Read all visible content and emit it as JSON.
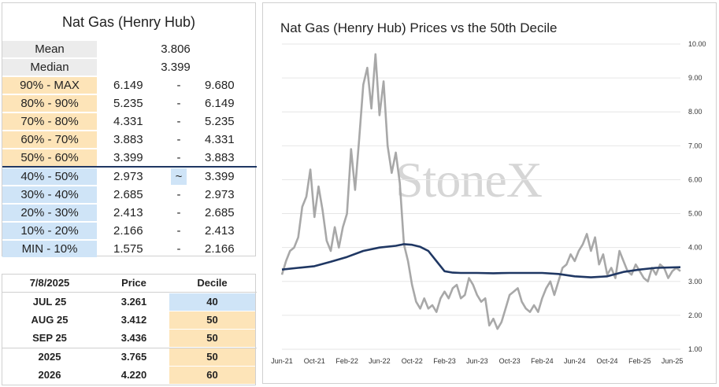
{
  "stats_table": {
    "title": "Nat Gas (Henry Hub)",
    "mean_label": "Mean",
    "mean_value": "3.806",
    "median_label": "Median",
    "median_value": "3.399",
    "deciles": [
      {
        "label": "90% - MAX",
        "low": "6.149",
        "sep": "-",
        "high": "9.680",
        "color": "#fde4b8"
      },
      {
        "label": "80% - 90%",
        "low": "5.235",
        "sep": "-",
        "high": "6.149",
        "color": "#fde4b8"
      },
      {
        "label": "70% - 80%",
        "low": "4.331",
        "sep": "-",
        "high": "5.235",
        "color": "#fde4b8"
      },
      {
        "label": "60% - 70%",
        "low": "3.883",
        "sep": "-",
        "high": "4.331",
        "color": "#fde4b8"
      },
      {
        "label": "50% - 60%",
        "low": "3.399",
        "sep": "-",
        "high": "3.883",
        "color": "#fde4b8"
      },
      {
        "label": "40% - 50%",
        "low": "2.973",
        "sep": "~",
        "high": "3.399",
        "color": "#cfe4f7"
      },
      {
        "label": "30% - 40%",
        "low": "2.685",
        "sep": "-",
        "high": "2.973",
        "color": "#cfe4f7"
      },
      {
        "label": "20% - 30%",
        "low": "2.413",
        "sep": "-",
        "high": "2.685",
        "color": "#cfe4f7"
      },
      {
        "label": "10% - 20%",
        "low": "2.166",
        "sep": "-",
        "high": "2.413",
        "color": "#cfe4f7"
      },
      {
        "label": "MIN - 10%",
        "low": "1.575",
        "sep": "-",
        "high": "2.166",
        "color": "#cfe4f7"
      }
    ]
  },
  "contract_table": {
    "headers": {
      "date": "7/8/2025",
      "price": "Price",
      "decile": "Decile"
    },
    "rows": [
      {
        "label": "JUL 25",
        "price": "3.261",
        "decile": "40"
      },
      {
        "label": "AUG 25",
        "price": "3.412",
        "decile": "50"
      },
      {
        "label": "SEP 25",
        "price": "3.436",
        "decile": "50"
      },
      {
        "label": "2025",
        "price": "3.765",
        "decile": "50"
      },
      {
        "label": "2026",
        "price": "4.220",
        "decile": "60"
      }
    ]
  },
  "colors": {
    "orange": "#fde4b8",
    "blue": "#cfe4f7",
    "price_line": "#a8a8a8",
    "median_line": "#1f3763"
  },
  "watermark": "StoneX",
  "chart_data": {
    "type": "line",
    "title": "Nat Gas (Henry Hub) Prices vs the 50th Decile",
    "x_ticks": [
      "Jun-21",
      "Oct-21",
      "Feb-22",
      "Jun-22",
      "Oct-22",
      "Feb-23",
      "Jun-23",
      "Oct-23",
      "Feb-24",
      "Jun-24",
      "Oct-24",
      "Feb-25",
      "Jun-25"
    ],
    "y_ticks": [
      "1.00",
      "2.00",
      "3.00",
      "4.00",
      "5.00",
      "6.00",
      "7.00",
      "8.00",
      "9.00",
      "10.00"
    ],
    "ylim": [
      1,
      10
    ],
    "xlim": [
      0,
      49
    ],
    "x_unit": "months since Jun-21",
    "series": [
      {
        "name": "Price",
        "x": [
          0,
          0.5,
          1,
          1.5,
          2,
          2.5,
          3,
          3.5,
          4,
          4.5,
          5,
          5.5,
          6,
          6.5,
          7,
          7.5,
          8,
          8.5,
          9,
          9.5,
          10,
          10.5,
          11,
          11.5,
          12,
          12.5,
          13,
          13.5,
          14,
          14.5,
          15,
          15.5,
          16,
          16.5,
          17,
          17.5,
          18,
          18.5,
          19,
          19.5,
          20,
          20.5,
          21,
          21.5,
          22,
          22.5,
          23,
          23.5,
          24,
          24.5,
          25,
          25.5,
          26,
          26.5,
          27,
          27.5,
          28,
          28.5,
          29,
          29.5,
          30,
          30.5,
          31,
          31.5,
          32,
          32.5,
          33,
          33.5,
          34,
          34.5,
          35,
          35.5,
          36,
          36.5,
          37,
          37.5,
          38,
          38.5,
          39,
          39.5,
          40,
          40.5,
          41,
          41.5,
          42,
          42.5,
          43,
          43.5,
          44,
          44.5,
          45,
          45.5,
          46,
          46.5,
          47,
          47.5,
          48,
          48.5,
          49
        ],
        "y": [
          3.2,
          3.6,
          3.9,
          4.0,
          4.3,
          5.2,
          5.5,
          6.3,
          4.9,
          5.8,
          5.1,
          4.2,
          3.9,
          4.6,
          4.0,
          4.6,
          5.0,
          6.9,
          5.7,
          7.2,
          8.8,
          9.3,
          8.1,
          9.7,
          7.9,
          8.9,
          7.0,
          6.2,
          6.8,
          5.9,
          4.1,
          3.6,
          2.9,
          2.4,
          2.2,
          2.5,
          2.2,
          2.3,
          2.1,
          2.5,
          2.7,
          2.5,
          2.8,
          2.9,
          2.5,
          2.6,
          3.1,
          2.9,
          2.6,
          2.4,
          2.5,
          1.7,
          1.9,
          1.6,
          1.8,
          2.2,
          2.6,
          2.7,
          2.8,
          2.4,
          2.2,
          2.1,
          2.3,
          2.1,
          2.5,
          2.8,
          3.0,
          2.6,
          3.0,
          3.4,
          3.5,
          3.8,
          3.6,
          3.9,
          4.1,
          4.4,
          3.9,
          4.3,
          3.5,
          3.8,
          3.2,
          3.4,
          3.1,
          3.9,
          3.6,
          3.3,
          3.2,
          3.5,
          3.3,
          3.1,
          3.0,
          3.4,
          3.2,
          3.5,
          3.4,
          3.1,
          3.3,
          3.4,
          3.3
        ]
      },
      {
        "name": "50th Decile",
        "x": [
          0,
          2,
          4,
          6,
          8,
          10,
          12,
          14,
          15,
          16,
          17,
          18,
          19,
          20,
          21,
          22,
          24,
          26,
          28,
          30,
          32,
          34,
          36,
          38,
          40,
          42,
          44,
          46,
          49
        ],
        "y": [
          3.35,
          3.4,
          3.45,
          3.58,
          3.72,
          3.9,
          4.0,
          4.05,
          4.1,
          4.08,
          4.02,
          3.9,
          3.6,
          3.3,
          3.26,
          3.25,
          3.25,
          3.24,
          3.25,
          3.25,
          3.25,
          3.22,
          3.15,
          3.12,
          3.15,
          3.28,
          3.35,
          3.4,
          3.42
        ]
      }
    ]
  }
}
